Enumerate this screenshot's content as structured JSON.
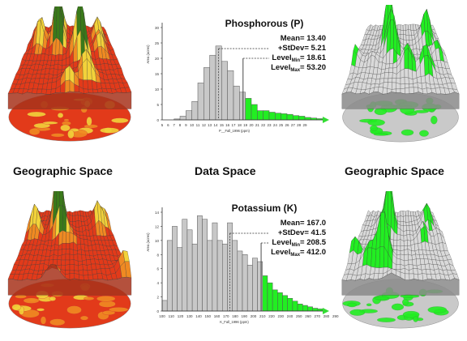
{
  "labels": {
    "left_space": "Geographic Space",
    "middle_space": "Data Space",
    "right_space": "Geographic Space"
  },
  "colors": {
    "bar_gray": "#c8c8c8",
    "bar_green": "#22ee22",
    "arrow_green": "#33dd33",
    "map_red": "#e23a1a",
    "map_orange": "#f08a22",
    "map_yellow": "#f2d23a",
    "map_gray": "#c9c9c9"
  },
  "chart_data": [
    {
      "type": "bar",
      "title": "Phosphorous (P)",
      "ylabel": "Area (acres)",
      "xlabel": "P__Fall_1996 (ppm)",
      "ylim": [
        0,
        30
      ],
      "yticks": [
        0,
        5,
        10,
        15,
        20,
        25,
        30
      ],
      "x_ticks": [
        5,
        6,
        7,
        8,
        9,
        10,
        11,
        12,
        13,
        14,
        15,
        16,
        17,
        18,
        19,
        20,
        21,
        22,
        23,
        24,
        25,
        26,
        27,
        28,
        29
      ],
      "bin_start": 5,
      "bin_width": 1,
      "values": [
        0,
        0,
        0.3,
        1.2,
        3,
        6,
        12,
        17,
        21,
        24,
        19,
        16,
        11,
        9,
        7,
        5,
        3,
        3,
        2.5,
        2.2,
        2,
        1.8,
        1.4,
        1.2,
        0.8,
        0.6,
        0.4
      ],
      "threshold": 18.61,
      "stats": [
        {
          "label": "Mean",
          "value": "13.40"
        },
        {
          "label": "+StDev",
          "value": "5.21"
        },
        {
          "label": "Level",
          "sub": "Min",
          "value": "18.61"
        },
        {
          "label": "Level",
          "sub": "Max",
          "value": "53.20"
        }
      ]
    },
    {
      "type": "bar",
      "title": "Potassium (K)",
      "ylabel": "Area (acres)",
      "xlabel": "K_Fall_1996 (ppm)",
      "ylim": [
        0,
        14
      ],
      "yticks": [
        0,
        2,
        4,
        6,
        8,
        10,
        12,
        14
      ],
      "x_ticks": [
        100,
        110,
        120,
        130,
        140,
        150,
        160,
        170,
        180,
        190,
        200,
        210,
        220,
        230,
        240,
        250,
        260,
        270,
        280,
        290
      ],
      "bin_start": 100,
      "bin_width": 5.5,
      "values": [
        1.5,
        10,
        12,
        9,
        13,
        11.5,
        9.5,
        13.5,
        13,
        10,
        12.5,
        10,
        9.5,
        12.5,
        10,
        8.5,
        8,
        6.5,
        7.5,
        7,
        5,
        4,
        3,
        2.6,
        2.2,
        1.8,
        1.4,
        1,
        0.8,
        0.6,
        0.4,
        0.3
      ],
      "threshold": 208.5,
      "stats": [
        {
          "label": "Mean",
          "value": "167.0"
        },
        {
          "label": "+StDev",
          "value": "41.5"
        },
        {
          "label": "Level",
          "sub": "Min",
          "value": "208.5"
        },
        {
          "label": "Level",
          "sub": "Max",
          "value": "412.0"
        }
      ]
    }
  ]
}
